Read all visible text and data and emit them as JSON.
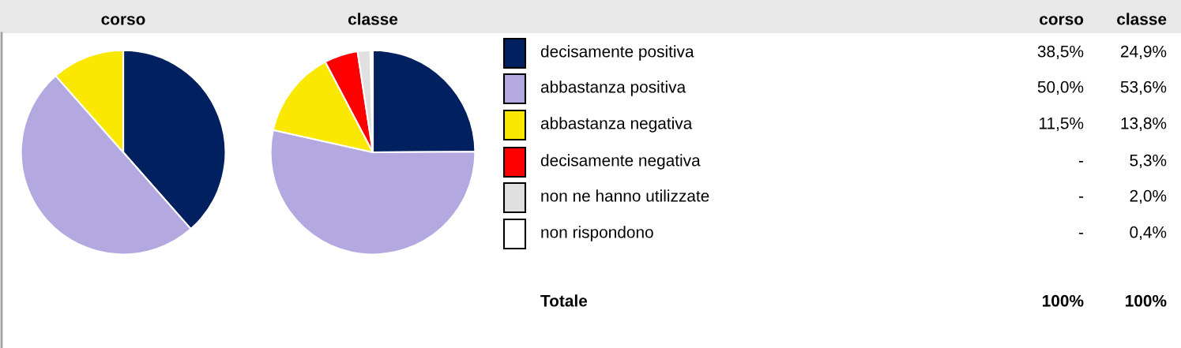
{
  "chart_data": [
    {
      "type": "pie",
      "title": "corso",
      "categories": [
        null,
        null,
        null,
        null,
        null,
        null
      ],
      "values": [
        38.5,
        50.0,
        11.5,
        0,
        0,
        0
      ],
      "colors": [
        "#002060",
        "#b3a9e0",
        "#fae800",
        "#ff0000",
        "#e0e0e0",
        "#ffffff"
      ]
    },
    {
      "type": "pie",
      "title": "classe",
      "categories": [
        null,
        null,
        null,
        null,
        null,
        null
      ],
      "values": [
        24.9,
        53.6,
        13.8,
        5.3,
        2.0,
        0.4
      ],
      "colors": [
        "#002060",
        "#b3a9e0",
        "#fae800",
        "#ff0000",
        "#e0e0e0",
        "#ffffff"
      ]
    },
    {
      "type": "other",
      "categories": [
        "decisamente positiva",
        "abbastanza positiva",
        "abbastanza negativa",
        "decisamente negativa",
        "non ne hanno utilizzate",
        "non rispondono"
      ],
      "colors": [
        "#002060",
        "#b3a9e0",
        "#fae800",
        "#ff0000",
        "#e0e0e0",
        "#ffffff"
      ],
      "totals": [
        "100%",
        "100%"
      ],
      "annotations": [
        "corso",
        "classe",
        "38,5%",
        "24,9%",
        "50,0%",
        "53,6%",
        "11,5%",
        "13,8%",
        "-",
        "5,3%",
        "-",
        "2,0%",
        "-",
        "0,4%",
        "Totale"
      ]
    }
  ]
}
